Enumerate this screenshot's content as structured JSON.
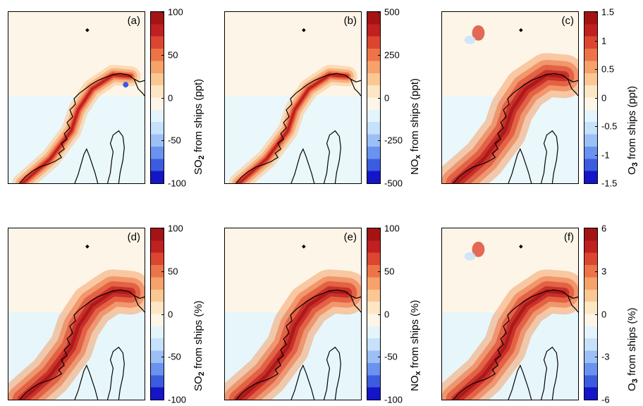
{
  "panels": [
    {
      "label": "(a)",
      "kind": "so2_abs",
      "ticks": [
        "100",
        "50",
        "0",
        "-50",
        "-100"
      ],
      "cbar_prefix": "SO",
      "cbar_sub": "2",
      "cbar_suffix": " from ships (ppt)"
    },
    {
      "label": "(b)",
      "kind": "nox_abs",
      "ticks": [
        "500",
        "250",
        "0",
        "-250",
        "-500"
      ],
      "cbar_prefix": "NO",
      "cbar_sub": "x",
      "cbar_suffix": " from ships (ppt)"
    },
    {
      "label": "(c)",
      "kind": "o3_abs",
      "ticks": [
        "1.5",
        "1",
        "0.5",
        "0",
        "-0.5",
        "-1",
        "-1.5"
      ],
      "cbar_prefix": "O",
      "cbar_sub": "3",
      "cbar_suffix": " from ships (ppt)"
    },
    {
      "label": "(d)",
      "kind": "so2_rel",
      "ticks": [
        "100",
        "50",
        "0",
        "-50",
        "-100"
      ],
      "cbar_prefix": "SO",
      "cbar_sub": "2",
      "cbar_suffix": " from ships (%)"
    },
    {
      "label": "(e)",
      "kind": "nox_rel",
      "ticks": [
        "100",
        "50",
        "0",
        "-50",
        "-100"
      ],
      "cbar_prefix": "NO",
      "cbar_sub": "x",
      "cbar_suffix": " from ships (%)"
    },
    {
      "label": "(f)",
      "kind": "o3_rel",
      "ticks": [
        "6",
        "3",
        "0",
        "-3",
        "-6"
      ],
      "cbar_prefix": "O",
      "cbar_sub": "3",
      "cbar_suffix": " from ships (%)"
    }
  ],
  "colormap": [
    "#1515c8",
    "#3c5ce0",
    "#6a92ef",
    "#9cc0f6",
    "#c6e1fa",
    "#e4f4fc",
    "#fdf6e8",
    "#fde6c4",
    "#fbc894",
    "#f6a26a",
    "#ec7448",
    "#dc4630",
    "#c02020",
    "#a41414"
  ]
}
